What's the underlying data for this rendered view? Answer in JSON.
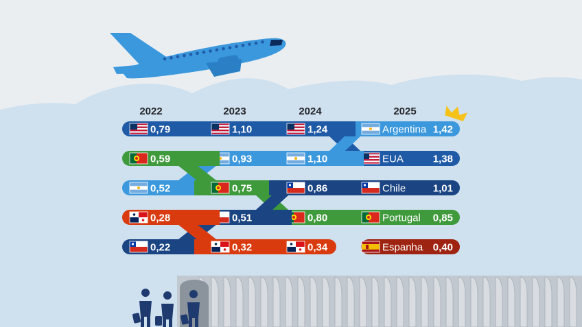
{
  "chart_data": {
    "type": "bump",
    "years": [
      "2022",
      "2023",
      "2024",
      "2025"
    ],
    "series": [
      {
        "name": "EUA",
        "flag": "usa",
        "color": "#1f5aa6",
        "ranks": [
          1,
          1,
          1,
          2
        ],
        "values": [
          "0,79",
          "1,10",
          "1,24",
          "1,38"
        ]
      },
      {
        "name": "Argentina",
        "flag": "argentina",
        "color": "#3b98dd",
        "ranks": [
          3,
          2,
          2,
          1
        ],
        "values": [
          "0,52",
          "0,93",
          "1,10",
          "1,42"
        ]
      },
      {
        "name": "Portugal",
        "flag": "portugal",
        "color": "#3f9a3c",
        "ranks": [
          2,
          3,
          4,
          4
        ],
        "values": [
          "0,59",
          "0,75",
          "0,80",
          "0,85"
        ]
      },
      {
        "name": "Chile",
        "flag": "chile",
        "color": "#1a4482",
        "ranks": [
          5,
          4,
          3,
          3
        ],
        "values": [
          "0,22",
          "0,51",
          "0,86",
          "1,01"
        ]
      },
      {
        "name": "Panamá",
        "flag": "panama",
        "color": "#d93b0f",
        "ranks": [
          4,
          5,
          5,
          null
        ],
        "values": [
          "0,28",
          "0,32",
          "0,34",
          null
        ]
      },
      {
        "name": "Espanha",
        "flag": "spain",
        "color": "#9e2310",
        "ranks": [
          null,
          null,
          null,
          5
        ],
        "values": [
          null,
          null,
          null,
          "0,40"
        ]
      }
    ],
    "leader_mark": "crown-icon"
  },
  "colors": {
    "background": "#ebeef1",
    "clouds": "#cfe1ef",
    "plane": "#3b98dd",
    "passengers": "#1f3a6e",
    "jetbridge": "#c2c8cf",
    "crown": "#f6c21a"
  },
  "illustration": {
    "plane_icon": "airplane-icon",
    "passengers_icon": "passengers-icon",
    "jetbridge_icon": "jetbridge-icon"
  }
}
